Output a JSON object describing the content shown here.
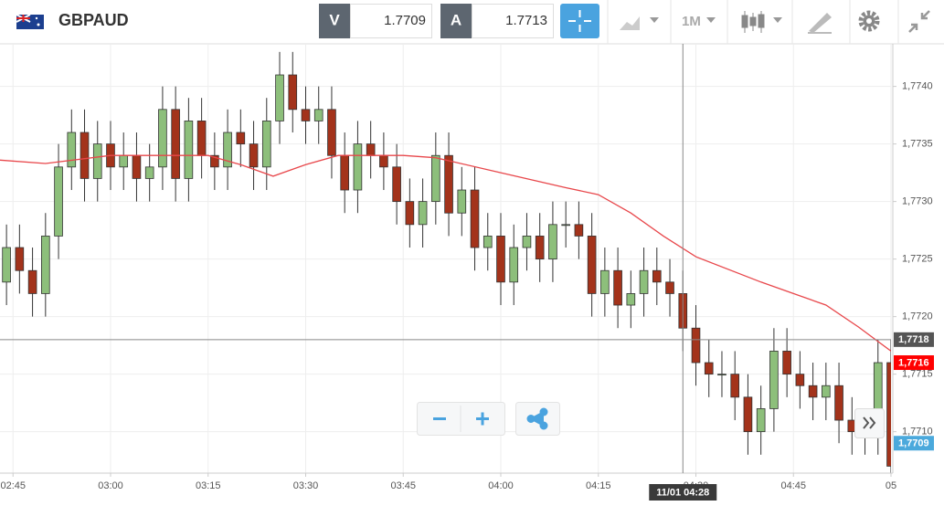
{
  "header": {
    "symbol": "GBPAUD",
    "bid_label": "V",
    "bid": 1.7709,
    "ask_label": "A",
    "ask": 1.7713,
    "timeframe": "1M"
  },
  "chart_data": {
    "type": "candlestick",
    "x": [
      "02:44",
      "02:46",
      "02:48",
      "02:50",
      "02:52",
      "02:54",
      "02:56",
      "02:58",
      "03:00",
      "03:02",
      "03:04",
      "03:06",
      "03:08",
      "03:10",
      "03:12",
      "03:14",
      "03:16",
      "03:18",
      "03:20",
      "03:22",
      "03:24",
      "03:26",
      "03:28",
      "03:30",
      "03:32",
      "03:34",
      "03:36",
      "03:38",
      "03:40",
      "03:42",
      "03:44",
      "03:46",
      "03:48",
      "03:50",
      "03:52",
      "03:54",
      "03:56",
      "03:58",
      "04:00",
      "04:02",
      "04:04",
      "04:06",
      "04:08",
      "04:10",
      "04:12",
      "04:14",
      "04:16",
      "04:18",
      "04:20",
      "04:22",
      "04:24",
      "04:26",
      "04:28",
      "04:30",
      "04:32",
      "04:34",
      "04:36",
      "04:38",
      "04:40",
      "04:42",
      "04:44",
      "04:46",
      "04:48",
      "04:50",
      "04:52",
      "04:54",
      "04:56",
      "04:58",
      "05:00"
    ],
    "open": [
      1.7723,
      1.7726,
      1.7724,
      1.7722,
      1.7727,
      1.7733,
      1.7736,
      1.7732,
      1.7735,
      1.7733,
      1.7734,
      1.7732,
      1.7733,
      1.7738,
      1.7732,
      1.7737,
      1.7734,
      1.7733,
      1.7736,
      1.7735,
      1.7733,
      1.7737,
      1.7741,
      1.7738,
      1.7737,
      1.7738,
      1.7734,
      1.7731,
      1.7735,
      1.7734,
      1.7733,
      1.773,
      1.7728,
      1.773,
      1.7734,
      1.7729,
      1.7731,
      1.7726,
      1.7727,
      1.7723,
      1.7726,
      1.7727,
      1.7725,
      1.7728,
      1.7728,
      1.7727,
      1.7722,
      1.7724,
      1.7721,
      1.7722,
      1.7724,
      1.7723,
      1.7722,
      1.7719,
      1.7716,
      1.7715,
      1.7715,
      1.7713,
      1.771,
      1.7712,
      1.7717,
      1.7715,
      1.7714,
      1.7713,
      1.7714,
      1.7711,
      1.771,
      1.771,
      1.7716
    ],
    "high": [
      1.7728,
      1.7728,
      1.7726,
      1.7729,
      1.7735,
      1.7738,
      1.7738,
      1.7737,
      1.7737,
      1.7736,
      1.7736,
      1.7735,
      1.774,
      1.774,
      1.7739,
      1.7739,
      1.7736,
      1.7738,
      1.7738,
      1.7737,
      1.7739,
      1.7743,
      1.7743,
      1.774,
      1.774,
      1.774,
      1.7736,
      1.7737,
      1.7737,
      1.7736,
      1.7735,
      1.7732,
      1.7732,
      1.7736,
      1.7736,
      1.7733,
      1.7733,
      1.7729,
      1.7729,
      1.7728,
      1.7729,
      1.7729,
      1.773,
      1.773,
      1.773,
      1.7729,
      1.7726,
      1.7726,
      1.7724,
      1.7726,
      1.7726,
      1.7725,
      1.7724,
      1.7721,
      1.7718,
      1.7717,
      1.7717,
      1.7715,
      1.7714,
      1.7719,
      1.7719,
      1.7717,
      1.7716,
      1.7716,
      1.7716,
      1.7713,
      1.7712,
      1.7718,
      1.7718
    ],
    "low": [
      1.7721,
      1.7722,
      1.772,
      1.772,
      1.7725,
      1.7731,
      1.773,
      1.773,
      1.7731,
      1.7731,
      1.773,
      1.773,
      1.7731,
      1.773,
      1.773,
      1.7732,
      1.7731,
      1.7731,
      1.7733,
      1.7731,
      1.7731,
      1.7735,
      1.7736,
      1.7735,
      1.7735,
      1.7732,
      1.7729,
      1.7729,
      1.7732,
      1.7731,
      1.7728,
      1.7726,
      1.7726,
      1.7728,
      1.7727,
      1.7727,
      1.7724,
      1.7724,
      1.7721,
      1.7721,
      1.7724,
      1.7723,
      1.7723,
      1.7726,
      1.7725,
      1.772,
      1.772,
      1.7719,
      1.7719,
      1.772,
      1.7721,
      1.772,
      1.7717,
      1.7714,
      1.7713,
      1.7713,
      1.7711,
      1.7708,
      1.7708,
      1.771,
      1.7713,
      1.7712,
      1.7711,
      1.7711,
      1.7709,
      1.7708,
      1.7708,
      1.7708,
      1.7705
    ],
    "close": [
      1.7726,
      1.7724,
      1.7722,
      1.7727,
      1.7733,
      1.7736,
      1.7732,
      1.7735,
      1.7733,
      1.7734,
      1.7732,
      1.7733,
      1.7738,
      1.7732,
      1.7737,
      1.7734,
      1.7733,
      1.7736,
      1.7735,
      1.7733,
      1.7737,
      1.7741,
      1.7738,
      1.7737,
      1.7738,
      1.7734,
      1.7731,
      1.7735,
      1.7734,
      1.7733,
      1.773,
      1.7728,
      1.773,
      1.7734,
      1.7729,
      1.7731,
      1.7726,
      1.7727,
      1.7723,
      1.7726,
      1.7727,
      1.7725,
      1.7728,
      1.7728,
      1.7727,
      1.7722,
      1.7724,
      1.7721,
      1.7722,
      1.7724,
      1.7723,
      1.7722,
      1.7719,
      1.7716,
      1.7715,
      1.7715,
      1.7713,
      1.771,
      1.7712,
      1.7717,
      1.7715,
      1.7714,
      1.7713,
      1.7714,
      1.7711,
      1.771,
      1.771,
      1.7716,
      1.7707
    ],
    "up_color": "#8dbf7b",
    "down_color": "#a3331b",
    "ma": {
      "color": "#e8474b",
      "x": [
        "02:43",
        "02:50",
        "03:00",
        "03:10",
        "03:15",
        "03:20",
        "03:25",
        "03:30",
        "03:35",
        "03:40",
        "03:45",
        "03:50",
        "04:00",
        "04:10",
        "04:15",
        "04:20",
        "04:25",
        "04:30",
        "04:40",
        "04:45",
        "04:50",
        "04:55",
        "05:00"
      ],
      "values": [
        1.77336,
        1.77333,
        1.7734,
        1.7734,
        1.7734,
        1.77332,
        1.77322,
        1.77332,
        1.7734,
        1.7734,
        1.7734,
        1.77338,
        1.77325,
        1.77312,
        1.77306,
        1.7729,
        1.7727,
        1.77252,
        1.7723,
        1.7722,
        1.7721,
        1.77191,
        1.7717
      ]
    },
    "xlim": [
      "02:43",
      "05:00"
    ],
    "xticks": [
      "02:45",
      "03:00",
      "03:15",
      "03:30",
      "03:45",
      "04:00",
      "04:15",
      "04:30",
      "04:45",
      {
        "value": "05:00",
        "label": "05"
      }
    ],
    "ylim": [
      1.77064,
      1.77437
    ],
    "yticks": [
      {
        "value": 1.771,
        "label": "1,7710"
      },
      {
        "value": 1.7715,
        "label": "1,7715"
      },
      {
        "value": 1.772,
        "label": "1,7720"
      },
      {
        "value": 1.7725,
        "label": "1,7725"
      },
      {
        "value": 1.773,
        "label": "1,7730"
      },
      {
        "value": 1.7735,
        "label": "1,7735"
      },
      {
        "value": 1.774,
        "label": "1,7740"
      }
    ],
    "grid": true,
    "crosshair": {
      "y": {
        "value": 1.7718,
        "label": "1,7718"
      },
      "x": {
        "value": "04:28",
        "label": "11/01 04:28"
      }
    },
    "price_flags": [
      {
        "value": 1.7716,
        "label": "1,7716",
        "color": "#ff0000"
      },
      {
        "value": 1.7709,
        "label": "1,7709",
        "color": "#4ba9dc"
      }
    ]
  }
}
